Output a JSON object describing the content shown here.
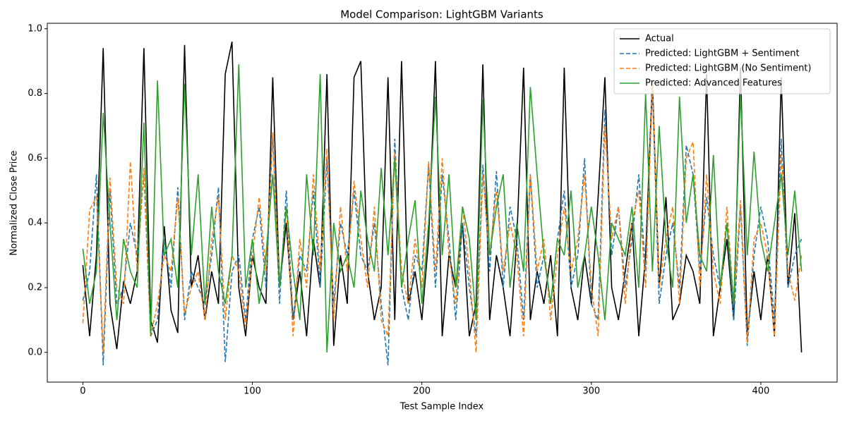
{
  "chart_data": {
    "type": "line",
    "title": "Model Comparison: LightGBM Variants",
    "x_label": "Test Sample Index",
    "y_label": "Normalized Close Price",
    "xlim": [
      -21,
      445
    ],
    "ylim": [
      -0.092,
      1.017
    ],
    "xticks": [
      0,
      100,
      200,
      300,
      400
    ],
    "yticks": [
      {
        "value": 0,
        "label": "0.0"
      },
      0.2,
      0.4,
      0.6,
      0.8,
      {
        "value": 1,
        "label": "1.0"
      }
    ],
    "grid": false,
    "legend": "upper right",
    "x": [
      0,
      4,
      8,
      12,
      16,
      20,
      24,
      28,
      32,
      36,
      40,
      44,
      48,
      52,
      56,
      60,
      64,
      68,
      72,
      76,
      80,
      84,
      88,
      92,
      96,
      100,
      104,
      108,
      112,
      116,
      120,
      124,
      128,
      132,
      136,
      140,
      144,
      148,
      152,
      156,
      160,
      164,
      168,
      172,
      176,
      180,
      184,
      188,
      192,
      196,
      200,
      204,
      208,
      212,
      216,
      220,
      224,
      228,
      232,
      236,
      240,
      244,
      248,
      252,
      256,
      260,
      264,
      268,
      272,
      276,
      280,
      284,
      288,
      292,
      296,
      300,
      304,
      308,
      312,
      316,
      320,
      324,
      328,
      332,
      336,
      340,
      344,
      348,
      352,
      356,
      360,
      364,
      368,
      372,
      376,
      380,
      384,
      388,
      392,
      396,
      400,
      404,
      408,
      412,
      416,
      420,
      424
    ],
    "series": [
      {
        "name": "Actual",
        "color": "#000000",
        "linestyle": "solid",
        "values": [
          0.27,
          0.05,
          0.3,
          0.94,
          0.15,
          0.01,
          0.22,
          0.15,
          0.25,
          0.94,
          0.1,
          0.03,
          0.39,
          0.13,
          0.06,
          0.95,
          0.2,
          0.3,
          0.1,
          0.25,
          0.15,
          0.86,
          0.96,
          0.2,
          0.05,
          0.3,
          0.2,
          0.15,
          0.85,
          0.2,
          0.4,
          0.1,
          0.25,
          0.05,
          0.35,
          0.2,
          0.86,
          0.02,
          0.3,
          0.15,
          0.85,
          0.9,
          0.25,
          0.1,
          0.2,
          0.85,
          0.1,
          0.9,
          0.15,
          0.25,
          0.1,
          0.35,
          0.9,
          0.05,
          0.3,
          0.2,
          0.4,
          0.05,
          0.15,
          0.89,
          0.1,
          0.3,
          0.2,
          0.05,
          0.35,
          0.88,
          0.1,
          0.25,
          0.15,
          0.3,
          0.05,
          0.88,
          0.2,
          0.1,
          0.3,
          0.15,
          0.48,
          0.85,
          0.2,
          0.1,
          0.25,
          0.4,
          0.05,
          0.3,
          0.84,
          0.2,
          0.48,
          0.1,
          0.15,
          0.3,
          0.25,
          0.15,
          0.86,
          0.05,
          0.2,
          0.35,
          0.1,
          0.88,
          0.05,
          0.25,
          0.1,
          0.3,
          0.05,
          0.85,
          0.2,
          0.43,
          0.0
        ]
      },
      {
        "name": "Predicted: LightGBM + Sentiment",
        "color": "#1f77b4",
        "linestyle": "dashed",
        "values": [
          0.16,
          0.25,
          0.55,
          -0.04,
          0.5,
          0.15,
          0.2,
          0.4,
          0.3,
          0.55,
          0.05,
          0.1,
          0.35,
          0.2,
          0.51,
          0.1,
          0.25,
          0.2,
          0.15,
          0.3,
          0.51,
          -0.03,
          0.25,
          0.3,
          0.1,
          0.35,
          0.45,
          0.2,
          0.68,
          0.15,
          0.5,
          0.1,
          0.3,
          0.25,
          0.5,
          0.2,
          0.6,
          0.15,
          0.4,
          0.3,
          0.5,
          0.3,
          0.25,
          0.4,
          0.15,
          -0.04,
          0.66,
          0.2,
          0.1,
          0.3,
          0.25,
          0.58,
          0.2,
          0.55,
          0.35,
          0.1,
          0.4,
          0.2,
          0.05,
          0.58,
          0.25,
          0.56,
          0.2,
          0.45,
          0.35,
          0.1,
          0.55,
          0.2,
          0.3,
          0.15,
          0.35,
          0.5,
          0.2,
          0.3,
          0.6,
          0.15,
          0.1,
          0.75,
          0.3,
          0.45,
          0.2,
          0.35,
          0.55,
          0.25,
          0.82,
          0.15,
          0.3,
          0.4,
          0.2,
          0.64,
          0.55,
          0.25,
          0.48,
          0.3,
          0.2,
          0.4,
          0.1,
          0.45,
          0.02,
          0.3,
          0.45,
          0.35,
          0.1,
          0.66,
          0.2,
          0.3,
          0.35
        ]
      },
      {
        "name": "Predicted: LightGBM (No Sentiment)",
        "color": "#ff7f0e",
        "linestyle": "dashed",
        "values": [
          0.09,
          0.44,
          0.48,
          0.0,
          0.54,
          0.2,
          0.15,
          0.59,
          0.25,
          0.57,
          0.05,
          0.15,
          0.3,
          0.25,
          0.48,
          0.12,
          0.2,
          0.25,
          0.1,
          0.35,
          0.48,
          0.1,
          0.3,
          0.25,
          0.08,
          0.3,
          0.48,
          0.25,
          0.68,
          0.2,
          0.45,
          0.05,
          0.35,
          0.2,
          0.55,
          0.25,
          0.63,
          0.1,
          0.45,
          0.25,
          0.53,
          0.35,
          0.2,
          0.45,
          0.1,
          0.05,
          0.62,
          0.25,
          0.15,
          0.35,
          0.2,
          0.59,
          0.25,
          0.6,
          0.3,
          0.15,
          0.45,
          0.25,
          0.0,
          0.55,
          0.3,
          0.5,
          0.25,
          0.4,
          0.3,
          0.05,
          0.55,
          0.25,
          0.35,
          0.1,
          0.3,
          0.45,
          0.25,
          0.35,
          0.55,
          0.2,
          0.05,
          0.7,
          0.35,
          0.45,
          0.15,
          0.4,
          0.5,
          0.2,
          0.84,
          0.2,
          0.35,
          0.45,
          0.15,
          0.6,
          0.65,
          0.2,
          0.55,
          0.25,
          0.15,
          0.45,
          0.15,
          0.47,
          0.03,
          0.35,
          0.4,
          0.3,
          0.05,
          0.61,
          0.25,
          0.16,
          0.3
        ]
      },
      {
        "name": "Predicted: Advanced Features",
        "color": "#2ca02c",
        "linestyle": "solid",
        "values": [
          0.32,
          0.15,
          0.25,
          0.74,
          0.4,
          0.1,
          0.35,
          0.25,
          0.2,
          0.71,
          0.05,
          0.84,
          0.3,
          0.35,
          0.2,
          0.83,
          0.3,
          0.55,
          0.15,
          0.45,
          0.25,
          0.15,
          0.3,
          0.89,
          0.2,
          0.35,
          0.15,
          0.3,
          0.55,
          0.2,
          0.45,
          0.25,
          0.1,
          0.55,
          0.3,
          0.86,
          0.0,
          0.4,
          0.25,
          0.3,
          0.2,
          0.5,
          0.35,
          0.25,
          0.57,
          0.3,
          0.6,
          0.2,
          0.35,
          0.47,
          0.15,
          0.4,
          0.79,
          0.3,
          0.55,
          0.2,
          0.45,
          0.35,
          0.1,
          0.78,
          0.3,
          0.45,
          0.55,
          0.2,
          0.4,
          0.25,
          0.82,
          0.55,
          0.3,
          0.15,
          0.35,
          0.3,
          0.5,
          0.2,
          0.3,
          0.45,
          0.3,
          0.1,
          0.4,
          0.35,
          0.3,
          0.45,
          0.2,
          0.8,
          0.25,
          0.7,
          0.35,
          0.2,
          0.79,
          0.4,
          0.55,
          0.3,
          0.25,
          0.61,
          0.2,
          0.4,
          0.15,
          0.8,
          0.3,
          0.62,
          0.35,
          0.25,
          0.4,
          0.55,
          0.3,
          0.5,
          0.25
        ]
      }
    ]
  }
}
